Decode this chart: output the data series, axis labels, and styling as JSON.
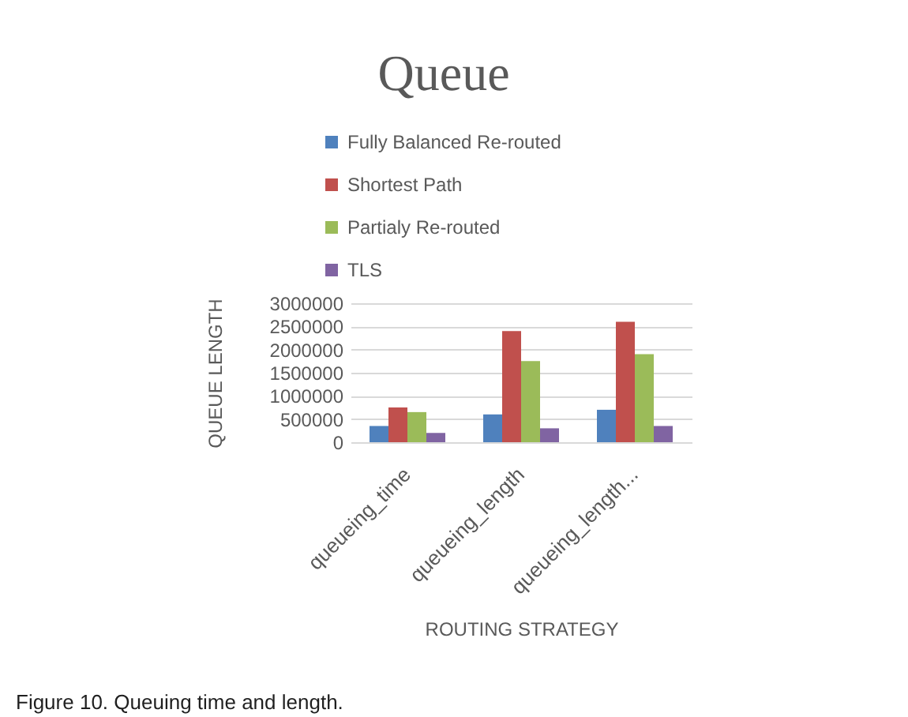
{
  "chart_data": {
    "type": "bar",
    "title": "Queue",
    "xlabel": "ROUTING STRATEGY",
    "ylabel": "QUEUE LENGTH",
    "categories": [
      "queueing_time",
      "queueing_length",
      "queueing_length..."
    ],
    "series": [
      {
        "name": "Fully Balanced Re-routed",
        "color": "#4f81bd",
        "values": [
          350000,
          600000,
          700000
        ]
      },
      {
        "name": "Shortest Path",
        "color": "#c0504d",
        "values": [
          750000,
          2400000,
          2600000
        ]
      },
      {
        "name": "Partialy Re-routed",
        "color": "#9bbb59",
        "values": [
          650000,
          1750000,
          1900000
        ]
      },
      {
        "name": "TLS",
        "color": "#8064a2",
        "values": [
          200000,
          300000,
          350000
        ]
      }
    ],
    "ylim": [
      0,
      3000000
    ],
    "yticks": [
      0,
      500000,
      1000000,
      1500000,
      2000000,
      2500000,
      3000000
    ],
    "grid": "y",
    "legend": "top",
    "annotations": [
      "Figure 10. Queuing time and length."
    ]
  }
}
